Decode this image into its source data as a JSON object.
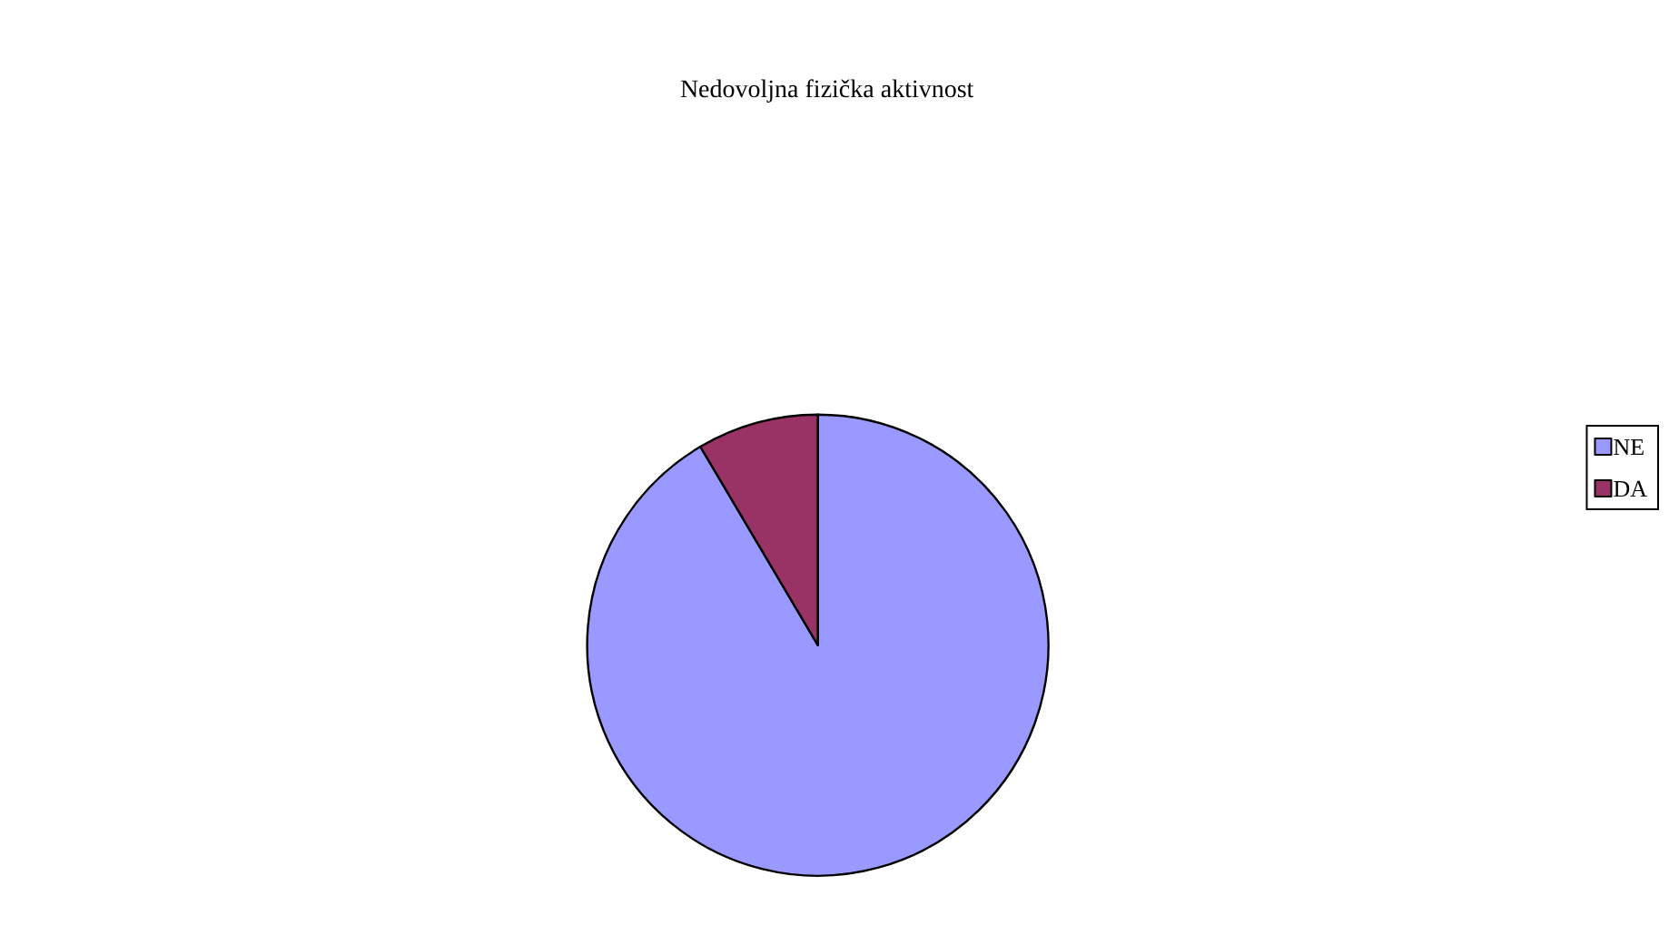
{
  "chart_data": {
    "type": "pie",
    "title": "Nedovoljna fizička aktivnost",
    "categories": [
      "NE",
      "DA"
    ],
    "values": [
      91.5,
      8.5
    ],
    "colors": [
      "#9999ff",
      "#993366"
    ],
    "legend": "right"
  }
}
